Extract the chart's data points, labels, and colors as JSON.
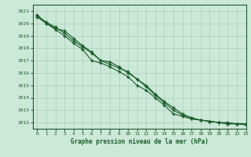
{
  "title": "Graphe pression niveau de la mer (hPa)",
  "bg_color": "#cce8d8",
  "grid_color": "#aacfbc",
  "line_color": "#1a5c2a",
  "xlim": [
    -0.5,
    23
  ],
  "ylim": [
    1011.5,
    1021.5
  ],
  "xticks": [
    0,
    1,
    2,
    3,
    4,
    5,
    6,
    7,
    8,
    9,
    10,
    11,
    12,
    13,
    14,
    15,
    16,
    17,
    18,
    19,
    20,
    21,
    22,
    23
  ],
  "yticks": [
    1012,
    1013,
    1014,
    1015,
    1016,
    1017,
    1018,
    1019,
    1020,
    1021
  ],
  "line1": [
    1020.7,
    1020.0,
    1019.6,
    1019.4,
    1018.8,
    1018.2,
    1017.7,
    1017.0,
    1016.9,
    1016.5,
    1016.0,
    1015.5,
    1015.0,
    1014.3,
    1013.7,
    1013.2,
    1012.7,
    1012.4,
    1012.2,
    1012.1,
    1012.0,
    1012.0,
    1011.9,
    1011.9
  ],
  "line2": [
    1020.6,
    1020.1,
    1019.7,
    1019.2,
    1018.6,
    1018.1,
    1017.6,
    1017.0,
    1016.7,
    1016.4,
    1016.1,
    1015.5,
    1014.9,
    1014.2,
    1013.6,
    1013.0,
    1012.6,
    1012.3,
    1012.2,
    1012.1,
    1012.0,
    1011.9,
    1011.9,
    1011.9
  ],
  "line3": [
    1020.5,
    1020.0,
    1019.5,
    1019.0,
    1018.4,
    1017.9,
    1017.0,
    1016.8,
    1016.5,
    1016.1,
    1015.7,
    1015.0,
    1014.6,
    1014.0,
    1013.4,
    1012.7,
    1012.5,
    1012.3,
    1012.2,
    1012.1,
    1012.0,
    1011.9,
    1011.9,
    1011.8
  ]
}
